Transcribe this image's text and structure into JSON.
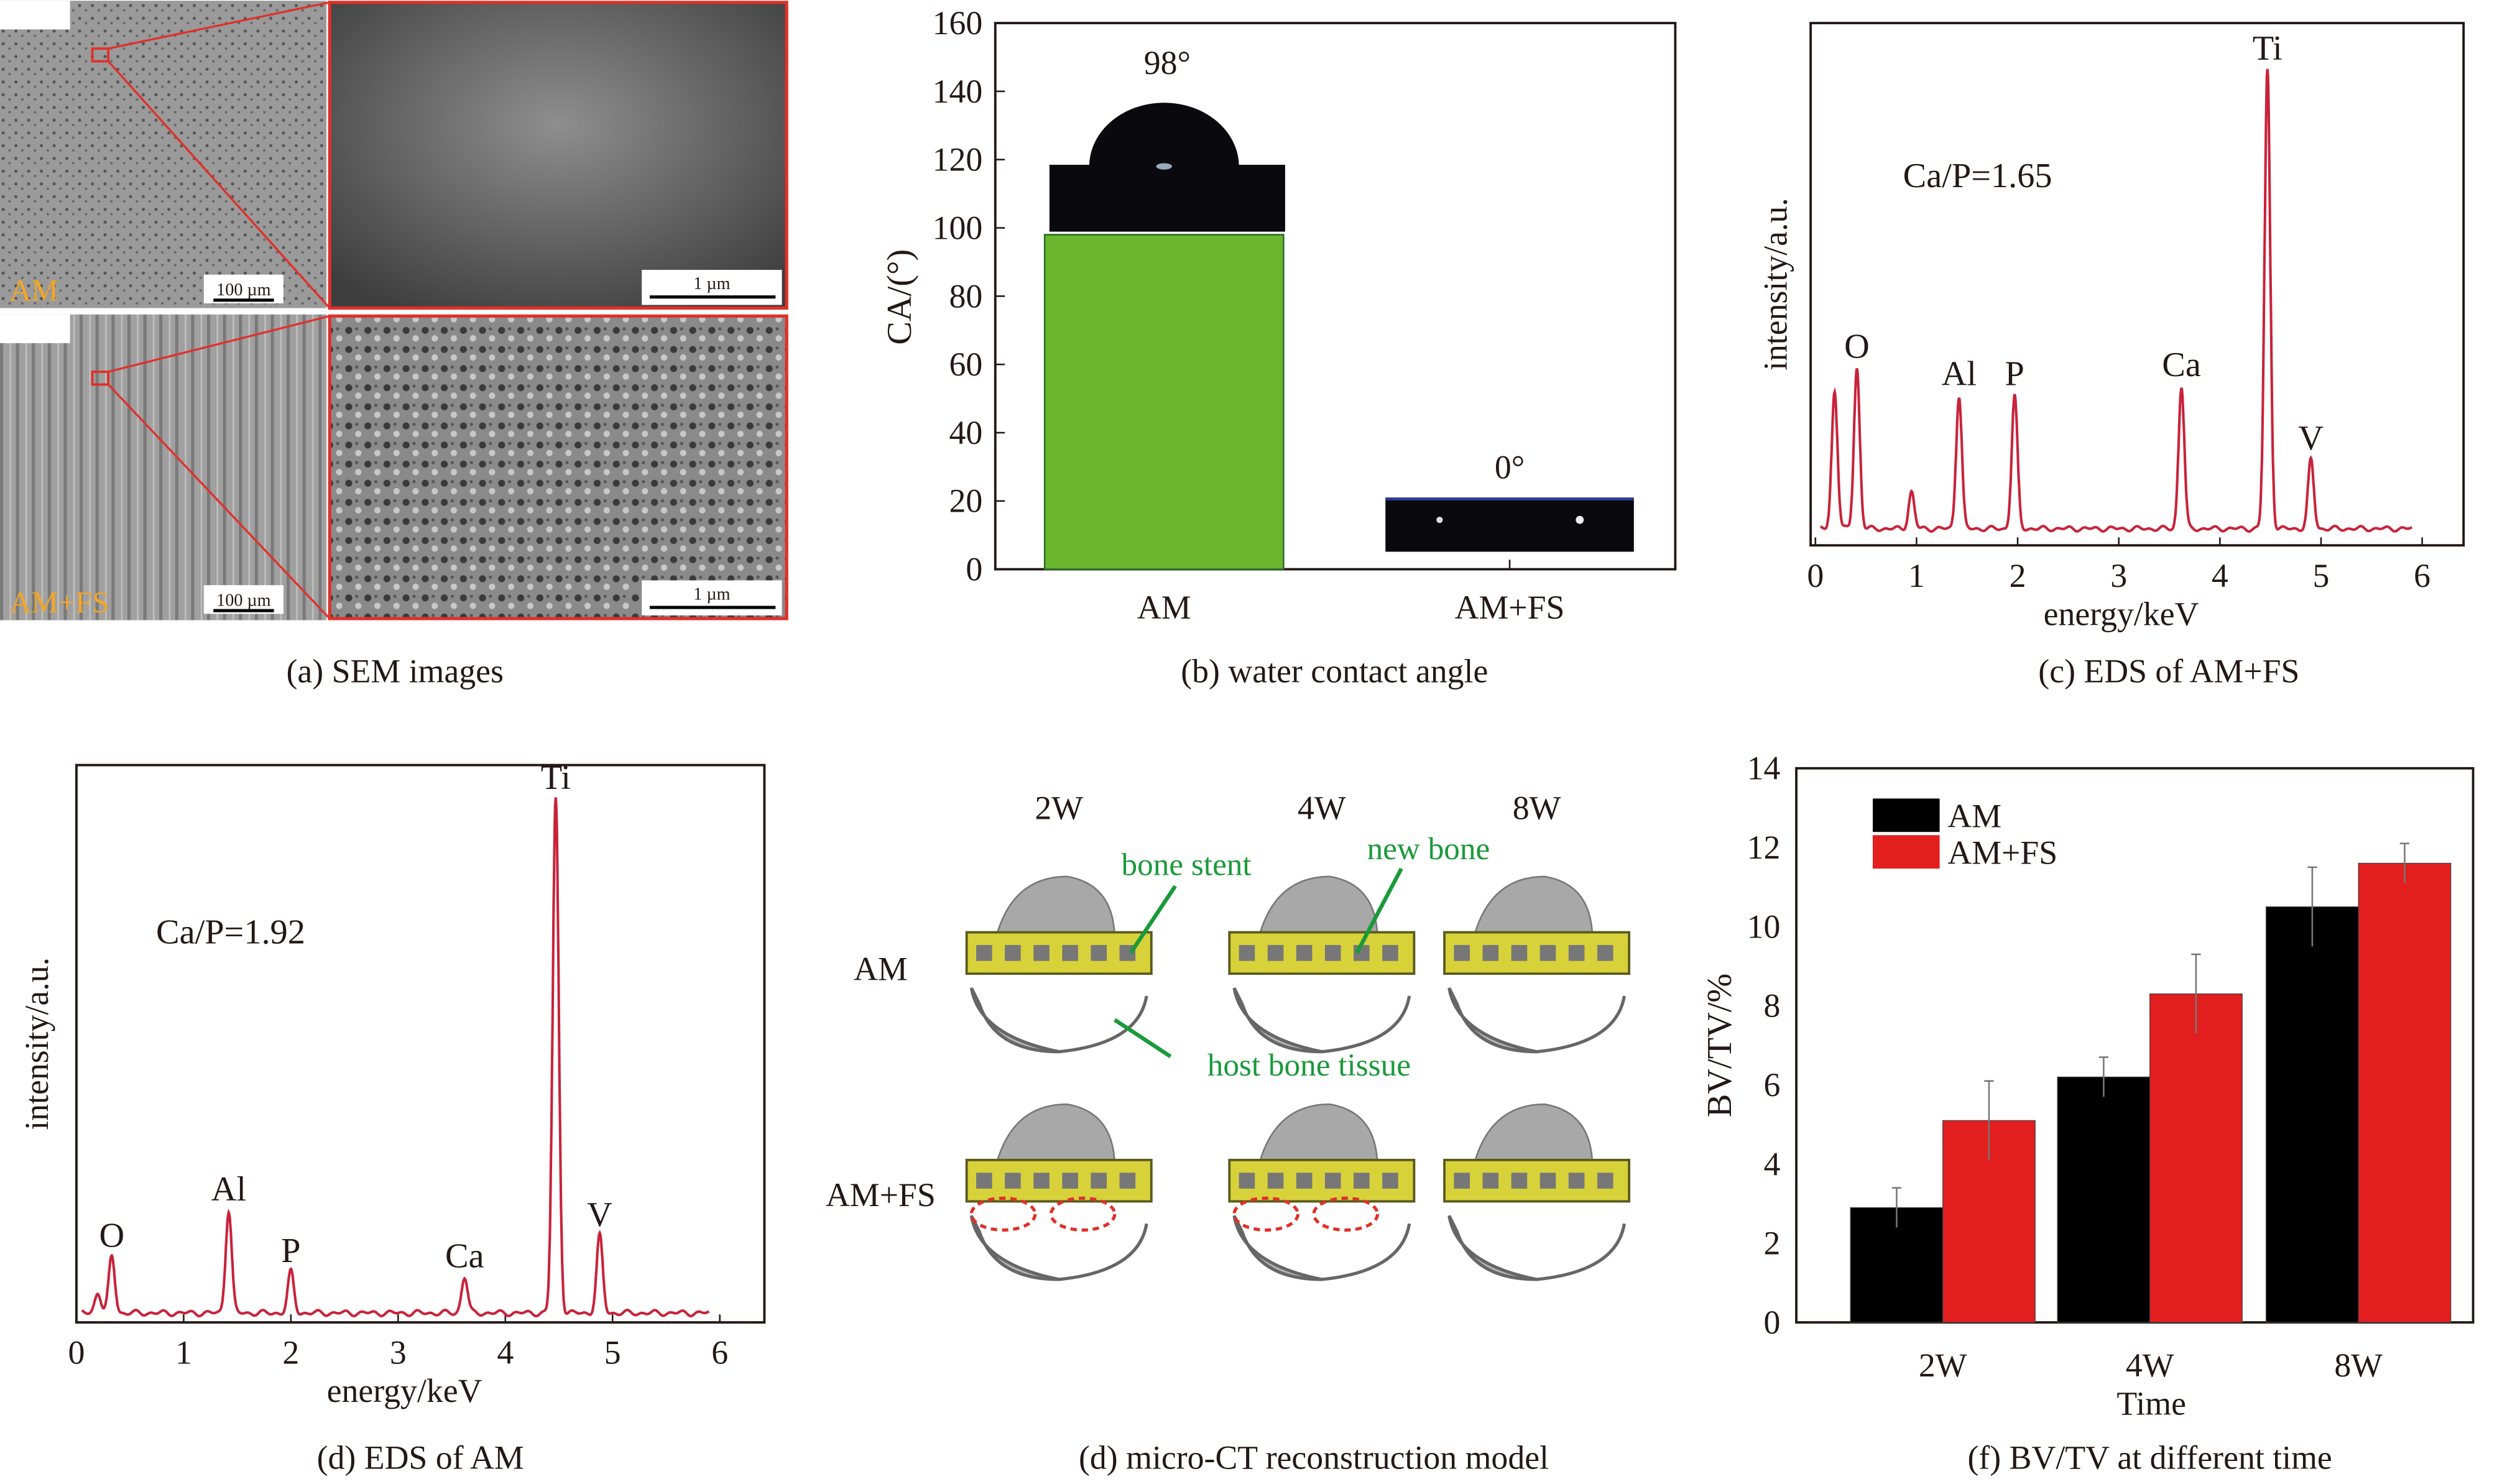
{
  "panel_a": {
    "caption": "(a) SEM images",
    "rows": [
      {
        "label": "AM",
        "scale_low": "100 µm",
        "scale_high": "1 µm"
      },
      {
        "label": "AM+FS",
        "scale_low": "100 µm",
        "scale_high": "1 µm"
      }
    ],
    "label_color": "#f5a623",
    "frame_color": "#e0302a"
  },
  "chart_data": [
    {
      "id": "b",
      "type": "bar",
      "caption": "(b) water contact angle",
      "categories": [
        "AM",
        "AM+FS"
      ],
      "values": [
        98,
        0
      ],
      "bar_labels": [
        "98°",
        "0°"
      ],
      "ylabel": "CA/(°)",
      "ylim": [
        0,
        160
      ],
      "yticks": [
        0,
        20,
        40,
        60,
        80,
        100,
        120,
        140,
        160
      ],
      "bar_color": "#6ab72e",
      "grid": false
    },
    {
      "id": "c",
      "type": "line",
      "caption": "(c) EDS of AM+FS",
      "xlabel": "energy/keV",
      "ylabel": "intensity/a.u.",
      "xlim": [
        0,
        6
      ],
      "xticks": [
        0,
        1,
        2,
        3,
        4,
        5,
        6
      ],
      "annotation": "Ca/P=1.65",
      "line_color": "#c8233a",
      "peaks": [
        {
          "label": "",
          "energy": 0.19,
          "intensity": 0.3
        },
        {
          "label": "O",
          "energy": 0.41,
          "intensity": 0.35
        },
        {
          "label": "",
          "energy": 0.95,
          "intensity": 0.08
        },
        {
          "label": "Al",
          "energy": 1.42,
          "intensity": 0.29
        },
        {
          "label": "P",
          "energy": 1.97,
          "intensity": 0.29
        },
        {
          "label": "Ca",
          "energy": 3.62,
          "intensity": 0.31
        },
        {
          "label": "Ti",
          "energy": 4.47,
          "intensity": 1.0
        },
        {
          "label": "V",
          "energy": 4.9,
          "intensity": 0.15
        }
      ]
    },
    {
      "id": "d",
      "type": "line",
      "caption": "(d) EDS of AM",
      "xlabel": "energy/keV",
      "ylabel": "intensity/a.u.",
      "xlim": [
        0,
        6
      ],
      "xticks": [
        0,
        1,
        2,
        3,
        4,
        5,
        6
      ],
      "annotation": "Ca/P=1.92",
      "line_color": "#c8233a",
      "peaks": [
        {
          "label": "",
          "energy": 0.2,
          "intensity": 0.04
        },
        {
          "label": "O",
          "energy": 0.33,
          "intensity": 0.11
        },
        {
          "label": "Al",
          "energy": 1.42,
          "intensity": 0.2
        },
        {
          "label": "P",
          "energy": 2.0,
          "intensity": 0.08
        },
        {
          "label": "Ca",
          "energy": 3.62,
          "intensity": 0.07
        },
        {
          "label": "Ti",
          "energy": 4.47,
          "intensity": 1.0
        },
        {
          "label": "V",
          "energy": 4.88,
          "intensity": 0.15
        }
      ]
    },
    {
      "id": "f",
      "type": "bar",
      "caption": "(f) BV/TV at different time",
      "categories": [
        "2W",
        "4W",
        "8W"
      ],
      "xlabel": "Time",
      "ylabel": "BV/TV/%",
      "ylim": [
        0,
        14
      ],
      "yticks": [
        0,
        2,
        4,
        6,
        8,
        10,
        12,
        14
      ],
      "legend": "top-left",
      "grid": false,
      "series": [
        {
          "name": "AM",
          "color": "#000000",
          "values": [
            2.9,
            6.2,
            10.5
          ],
          "errors": [
            0.5,
            0.5,
            1.0
          ]
        },
        {
          "name": "AM+FS",
          "color": "#e31e1e",
          "values": [
            5.1,
            8.3,
            11.6
          ],
          "errors": [
            1.0,
            1.0,
            0.5
          ]
        }
      ]
    }
  ],
  "panel_e": {
    "caption": "(d) micro-CT reconstruction model",
    "columns": [
      "2W",
      "4W",
      "8W"
    ],
    "rows": [
      "AM",
      "AM+FS"
    ],
    "annotations": [
      "bone stent",
      "new bone",
      "host bone tissue"
    ],
    "annotation_color": "#1a9a3a",
    "scaffold_color": "#d8d23a"
  }
}
